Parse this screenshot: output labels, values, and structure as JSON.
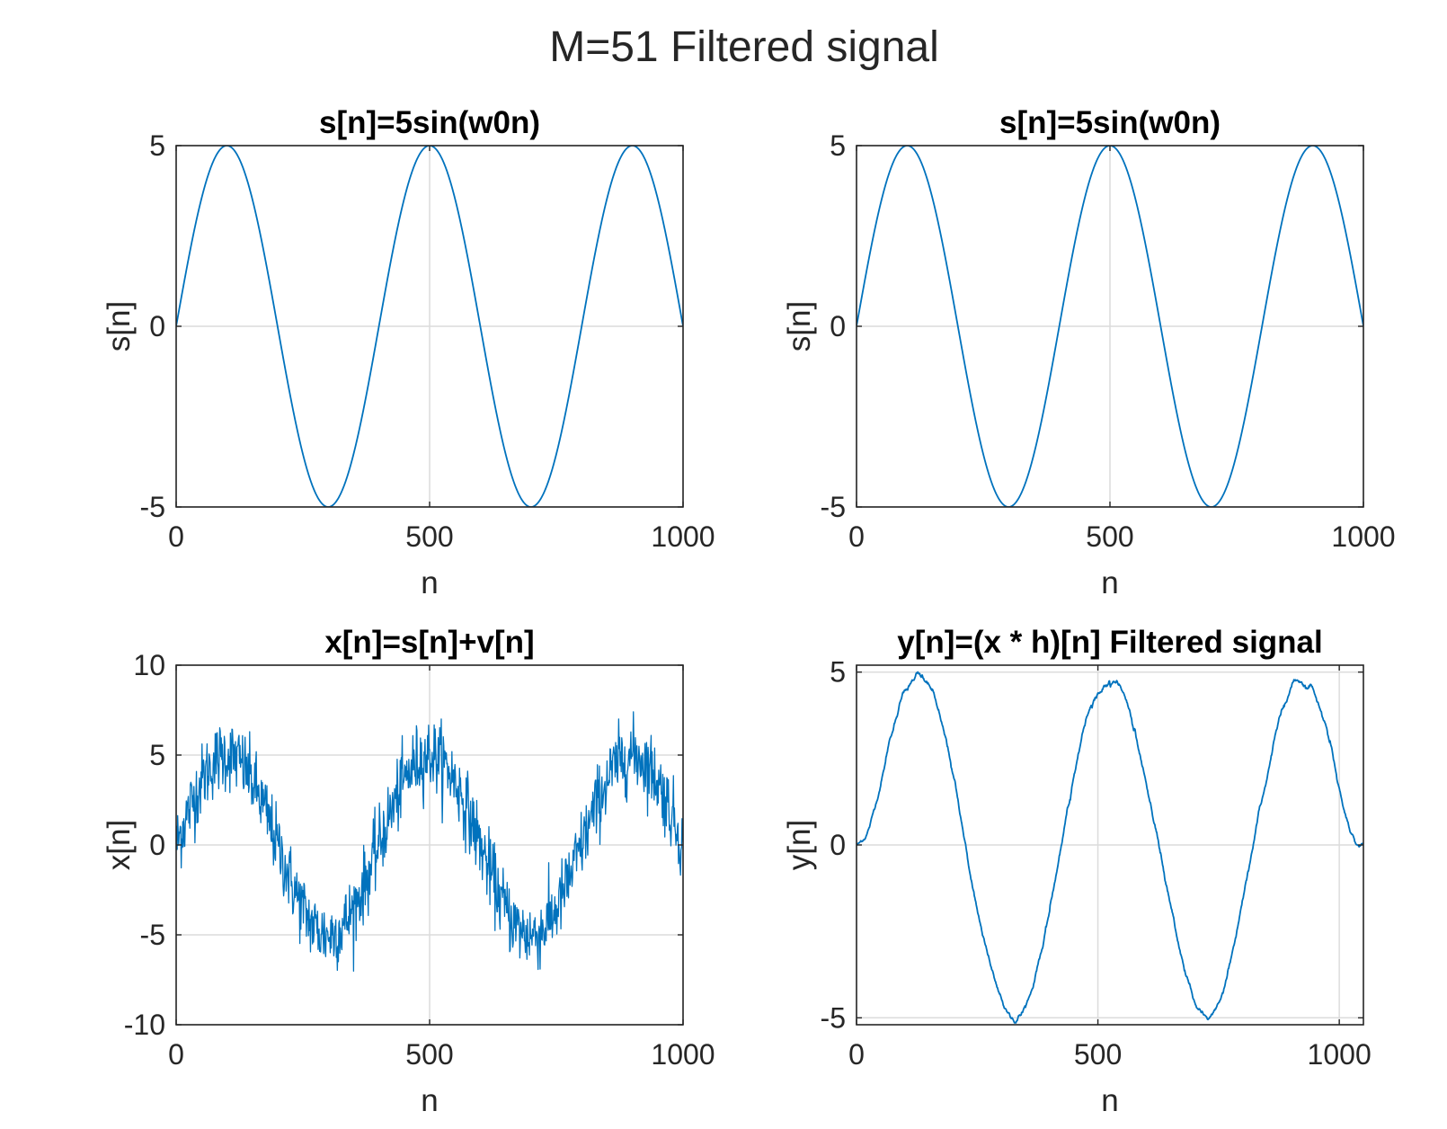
{
  "figure": {
    "suptitle": "M=51 Filtered signal"
  },
  "colors": {
    "line": "#0072BD",
    "axes": "#262626",
    "grid": "#dcdcdc"
  },
  "chart_data": [
    {
      "type": "line",
      "title": "s[n]=5sin(w0n)",
      "xlabel": "n",
      "ylabel": "s[n]",
      "xlim": [
        0,
        1000
      ],
      "ylim": [
        -5,
        5
      ],
      "xticks": [
        0,
        500,
        1000
      ],
      "xtick_labels": [
        "0",
        "500",
        "1000"
      ],
      "yticks": [
        -5,
        0,
        5
      ],
      "ytick_labels": [
        "-5",
        "0",
        "5"
      ],
      "grid": true,
      "series": [
        {
          "function": "5*sin(2*pi*n/400)",
          "x_range": [
            0,
            1000
          ],
          "samples": 1001
        }
      ]
    },
    {
      "type": "line",
      "title": "s[n]=5sin(w0n)",
      "xlabel": "n",
      "ylabel": "s[n]",
      "xlim": [
        0,
        1000
      ],
      "ylim": [
        -5,
        5
      ],
      "xticks": [
        0,
        500,
        1000
      ],
      "xtick_labels": [
        "0",
        "500",
        "1000"
      ],
      "yticks": [
        -5,
        0,
        5
      ],
      "ytick_labels": [
        "-5",
        "0",
        "5"
      ],
      "grid": true,
      "series": [
        {
          "function": "5*sin(2*pi*n/400)",
          "x_range": [
            0,
            1000
          ],
          "samples": 1001
        }
      ]
    },
    {
      "type": "line",
      "title": "x[n]=s[n]+v[n]",
      "xlabel": "n",
      "ylabel": "x[n]",
      "xlim": [
        0,
        1000
      ],
      "ylim": [
        -10,
        10
      ],
      "xticks": [
        0,
        500,
        1000
      ],
      "xtick_labels": [
        "0",
        "500",
        "1000"
      ],
      "yticks": [
        -10,
        -5,
        0,
        5,
        10
      ],
      "ytick_labels": [
        "-10",
        "-5",
        "0",
        "5",
        "10"
      ],
      "grid": true,
      "series": [
        {
          "function": "5*sin(2*pi*n/400) + noise",
          "noise_std": 1,
          "x_range": [
            0,
            1000
          ],
          "samples": 1001
        }
      ]
    },
    {
      "type": "line",
      "title": "y[n]=(x * h)[n] Filtered signal",
      "xlabel": "n",
      "ylabel": "y[n]",
      "xlim": [
        0,
        1050
      ],
      "ylim": [
        -5.2,
        5.2
      ],
      "xticks": [
        0,
        500,
        1000
      ],
      "xtick_labels": [
        "0",
        "500",
        "1000"
      ],
      "yticks": [
        -5,
        0,
        5
      ],
      "ytick_labels": [
        "-5",
        "0",
        "5"
      ],
      "grid": true,
      "series": [
        {
          "function": "moving_average(x, 51)",
          "filter_length": 51,
          "x_range": [
            0,
            1050
          ],
          "samples": 1051
        }
      ]
    }
  ]
}
